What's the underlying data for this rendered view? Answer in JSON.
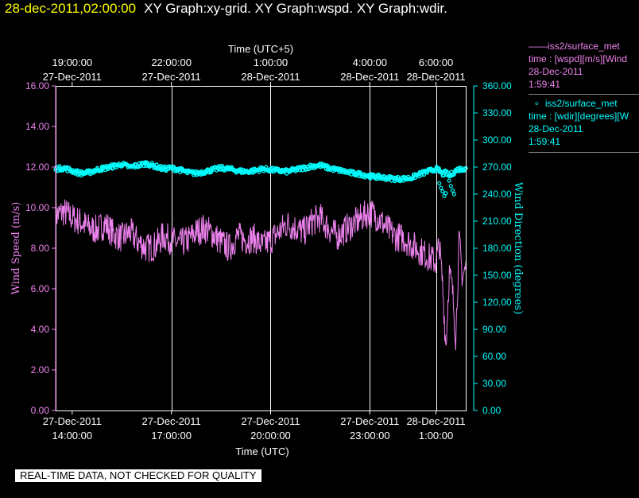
{
  "title": {
    "time": "28-dec-2011,02:00:00",
    "graphs": "XY Graph:xy-grid.  XY Graph:wspd.  XY Graph:wdir."
  },
  "legend": {
    "wspd": {
      "marker": "——",
      "name": "iss2/surface_met",
      "expr": "time : [wspd][m/s][Wind",
      "date": "28-Dec-2011",
      "time": "1:59:41"
    },
    "wdir": {
      "marker": "∘",
      "name": "iss2/surface_met",
      "expr": "time : [wdir][degrees][W",
      "date": "28-Dec-2011",
      "time": "1:59:41"
    }
  },
  "notice": "REAL-TIME DATA, NOT CHECKED FOR QUALITY",
  "colors": {
    "wspd": "#ee82ee",
    "wdir": "#00ffff",
    "title_time": "#ffff00",
    "axes": "#ffffff",
    "grid": "#ffffff"
  },
  "chart_data": {
    "type": "line",
    "x_unit": "hours",
    "x_range_utc": [
      13.5,
      25.9
    ],
    "bottom_axis": {
      "label": "Time (UTC)",
      "ticks": [
        {
          "x": 14,
          "line1": "27-Dec-2011",
          "line2": "14:00:00"
        },
        {
          "x": 17,
          "line1": "27-Dec-2011",
          "line2": "17:00:00"
        },
        {
          "x": 20,
          "line1": "27-Dec-2011",
          "line2": "20:00:00"
        },
        {
          "x": 23,
          "line1": "27-Dec-2011",
          "line2": "23:00:00"
        },
        {
          "x": 25,
          "line1": "28-Dec-2011",
          "line2": "1:00:00"
        }
      ]
    },
    "top_axis": {
      "label": "Time (UTC+5)",
      "ticks": [
        {
          "x": 14,
          "line1": "19:00:00",
          "line2": "27-Dec-2011"
        },
        {
          "x": 17,
          "line1": "22:00:00",
          "line2": "27-Dec-2011"
        },
        {
          "x": 20,
          "line1": "1:00:00",
          "line2": "28-Dec-2011"
        },
        {
          "x": 23,
          "line1": "4:00:00",
          "line2": "28-Dec-2011"
        },
        {
          "x": 25,
          "line1": "6:00:00",
          "line2": "28-Dec-2011"
        }
      ]
    },
    "left_axis": {
      "label": "Wind Speed (m/s)",
      "range": [
        0,
        16
      ],
      "ticks": [
        "0.00",
        "2.00",
        "4.00",
        "6.00",
        "8.00",
        "10.00",
        "12.00",
        "14.00",
        "16.00"
      ]
    },
    "right_axis": {
      "label": "Wind Direction (degrees)",
      "range": [
        0,
        360
      ],
      "ticks": [
        "0.00",
        "30.00",
        "60.00",
        "90.00",
        "120.00",
        "150.00",
        "180.00",
        "210.00",
        "240.00",
        "270.00",
        "300.00",
        "330.00",
        "360.00"
      ]
    },
    "grid_x": [
      17,
      20,
      23,
      25
    ],
    "series": [
      {
        "name": "iss2/surface_met",
        "axis": "left",
        "style": "line",
        "x": [
          13.5,
          13.75,
          14.0,
          14.25,
          14.5,
          14.75,
          15.0,
          15.25,
          15.5,
          15.75,
          16.0,
          16.25,
          16.5,
          16.75,
          17.0,
          17.25,
          17.5,
          17.75,
          18.0,
          18.25,
          18.5,
          18.75,
          19.0,
          19.25,
          19.5,
          19.75,
          20.0,
          20.25,
          20.5,
          20.75,
          21.0,
          21.25,
          21.5,
          21.75,
          22.0,
          22.25,
          22.5,
          22.75,
          23.0,
          23.25,
          23.5,
          23.75,
          24.0,
          24.25,
          24.5,
          24.75,
          25.0,
          25.1,
          25.2,
          25.3,
          25.4,
          25.5,
          25.6,
          25.7,
          25.8,
          25.9
        ],
        "values": [
          9.6,
          9.8,
          9.5,
          9.3,
          9.0,
          8.9,
          9.2,
          8.7,
          8.5,
          8.8,
          8.3,
          8.0,
          8.1,
          8.6,
          8.4,
          8.2,
          8.4,
          8.8,
          9.0,
          8.7,
          8.3,
          8.0,
          8.6,
          8.4,
          8.5,
          8.1,
          8.4,
          8.8,
          9.2,
          9.0,
          8.8,
          9.3,
          9.5,
          9.0,
          8.6,
          8.9,
          9.2,
          9.5,
          9.8,
          9.5,
          9.0,
          8.6,
          8.5,
          8.2,
          7.9,
          7.6,
          7.3,
          8.2,
          6.2,
          3.1,
          6.8,
          5.9,
          3.6,
          8.4,
          6.6,
          7.0
        ]
      },
      {
        "name": "iss2/surface_met",
        "axis": "right",
        "style": "markers",
        "x": [
          13.5,
          13.75,
          14.0,
          14.25,
          14.5,
          14.75,
          15.0,
          15.25,
          15.5,
          15.75,
          16.0,
          16.25,
          16.5,
          16.75,
          17.0,
          17.25,
          17.5,
          17.75,
          18.0,
          18.25,
          18.5,
          18.75,
          19.0,
          19.25,
          19.5,
          19.75,
          20.0,
          20.25,
          20.5,
          20.75,
          21.0,
          21.25,
          21.5,
          21.75,
          22.0,
          22.25,
          22.5,
          22.75,
          23.0,
          23.25,
          23.5,
          23.75,
          24.0,
          24.25,
          24.5,
          24.75,
          25.0,
          25.1,
          25.2,
          25.3,
          25.4,
          25.5,
          25.6,
          25.7,
          25.8,
          25.9
        ],
        "values": [
          268,
          269,
          266,
          263,
          264,
          267,
          269,
          271,
          273,
          270,
          272,
          274,
          271,
          268,
          269,
          267,
          264,
          263,
          265,
          267,
          269,
          268,
          266,
          265,
          266,
          268,
          267,
          266,
          265,
          267,
          269,
          271,
          272,
          269,
          267,
          265,
          263,
          262,
          260,
          259,
          258,
          257,
          257,
          258,
          262,
          265,
          268,
          266,
          262,
          264,
          260,
          263,
          266,
          268,
          267,
          270
        ]
      },
      {
        "name": "iss2/surface_met",
        "axis": "right",
        "style": "markers",
        "x": [
          25.1,
          25.15,
          25.2,
          25.25,
          25.3,
          25.4,
          25.45,
          25.5,
          25.55
        ],
        "values": [
          252,
          247,
          243,
          238,
          241,
          255,
          249,
          244,
          240
        ]
      }
    ]
  }
}
